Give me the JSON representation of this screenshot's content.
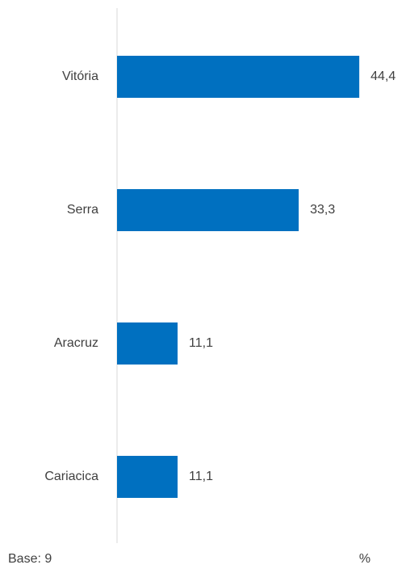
{
  "chart_data": {
    "type": "bar",
    "orientation": "horizontal",
    "categories": [
      "Vitória",
      "Serra",
      "Aracruz",
      "Cariacica"
    ],
    "values": [
      44.4,
      33.3,
      11.1,
      11.1
    ],
    "value_labels": [
      "44,4",
      "33,3",
      "11,1",
      "11,1"
    ],
    "color": "#0070c0",
    "xlim": [
      0,
      50
    ],
    "annotations": [
      "Base: 9",
      "%"
    ]
  }
}
